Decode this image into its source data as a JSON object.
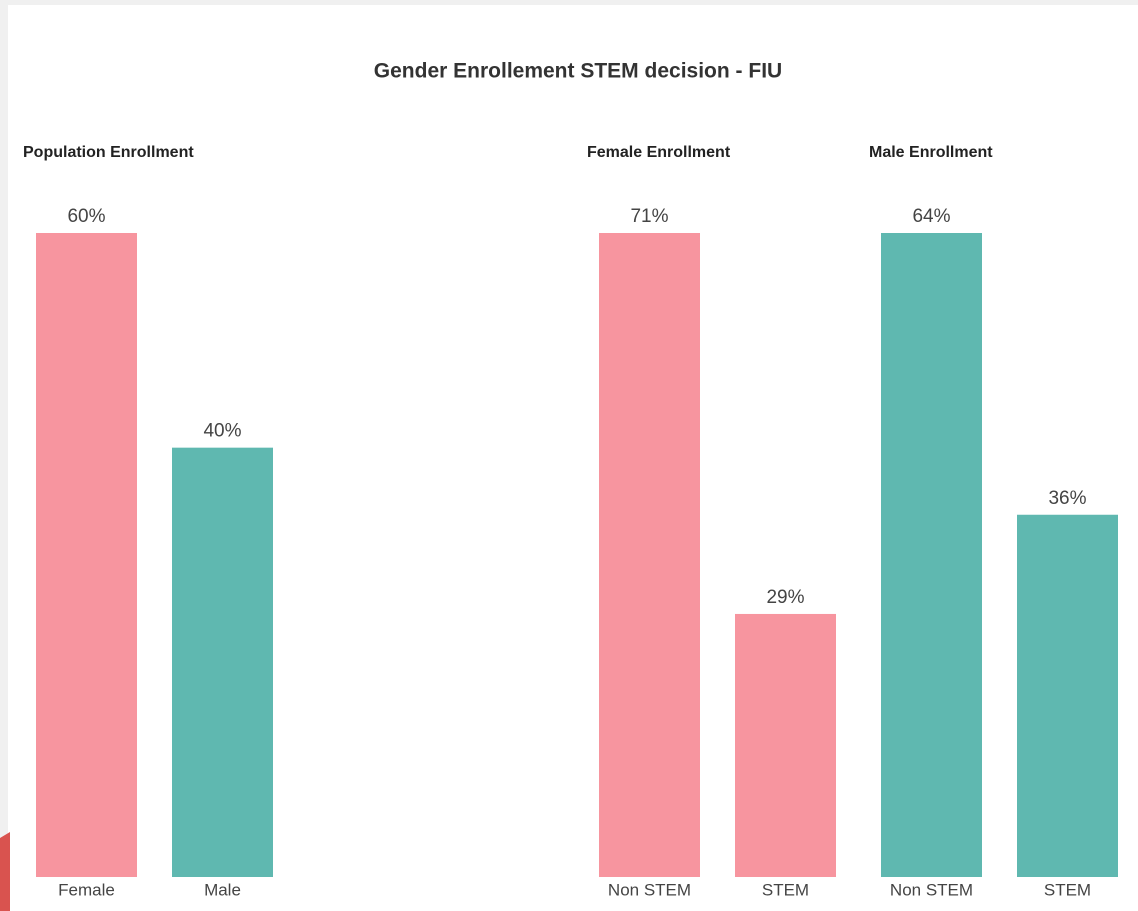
{
  "title": "Gender Enrollement STEM decision - FIU",
  "chart_data": [
    {
      "type": "bar",
      "title": "Population Enrollment",
      "categories": [
        "Female",
        "Male"
      ],
      "values": [
        60,
        40
      ],
      "value_labels": [
        "60%",
        "40%"
      ],
      "colors": [
        "#f7959f",
        "#5fb8b0"
      ],
      "ylim": [
        0,
        60
      ]
    },
    {
      "type": "bar",
      "title": "Female Enrollment",
      "categories": [
        "Non STEM",
        "STEM"
      ],
      "values": [
        71,
        29
      ],
      "value_labels": [
        "71%",
        "29%"
      ],
      "colors": [
        "#f7959f",
        "#f7959f"
      ],
      "ylim": [
        0,
        71
      ]
    },
    {
      "type": "bar",
      "title": "Male Enrollment",
      "categories": [
        "Non STEM",
        "STEM"
      ],
      "values": [
        64,
        36
      ],
      "value_labels": [
        "64%",
        "36%"
      ],
      "colors": [
        "#5fb8b0",
        "#5fb8b0"
      ],
      "ylim": [
        0,
        64
      ]
    }
  ]
}
